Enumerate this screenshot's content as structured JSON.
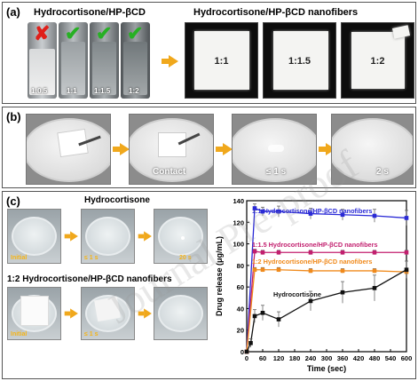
{
  "panel_a": {
    "label": "(a)",
    "left_title": "Hydrocortisone/HP-βCD",
    "right_title": "Hydrocortisone/HP-βCD nanofibers",
    "vials": [
      {
        "label": "1:0.5",
        "status": "cross"
      },
      {
        "label": "1:1",
        "status": "check"
      },
      {
        "label": "1:1.5",
        "status": "check"
      },
      {
        "label": "1:2",
        "status": "check"
      }
    ],
    "fibers": [
      {
        "label": "1:1"
      },
      {
        "label": "1:1.5"
      },
      {
        "label": "1:2"
      }
    ],
    "cross_symbol": "✘",
    "check_symbol": "✔"
  },
  "panel_b": {
    "label": "(b)",
    "frames": [
      {
        "caption": ""
      },
      {
        "caption": "Contact"
      },
      {
        "caption": "≤ 1 s"
      },
      {
        "caption": "2 s"
      }
    ]
  },
  "panel_c": {
    "label": "(c)",
    "row1_title": "Hydrocortisone",
    "row1_times": [
      "Initial",
      "≤ 1 s",
      "20 s"
    ],
    "row2_title": "1:2 Hydrocortisone/HP-βCD nanofibers",
    "row2_times": [
      "Initial",
      "≤ 1 s",
      ""
    ]
  },
  "chart_data": {
    "type": "line",
    "xlabel": "Time (sec)",
    "ylabel": "Drug release (μg/mL)",
    "xlim": [
      0,
      600
    ],
    "ylim": [
      0,
      140
    ],
    "xticks": [
      0,
      60,
      120,
      180,
      240,
      300,
      360,
      420,
      480,
      540,
      600
    ],
    "yticks": [
      0,
      20,
      40,
      60,
      80,
      100,
      120,
      140
    ],
    "series": [
      {
        "name": "1:1 Hydrocortisone/HP-βCD nanofibers",
        "color": "#2a2ad6",
        "x": [
          0,
          30,
          60,
          120,
          240,
          360,
          480,
          600
        ],
        "y": [
          0,
          133,
          130,
          130,
          128,
          127,
          126,
          124
        ],
        "err": [
          0,
          4,
          4,
          5,
          5,
          5,
          6,
          7
        ]
      },
      {
        "name": "1:1.5 Hydrocortisone/HP-βCD nanofibers",
        "color": "#c21f6e",
        "x": [
          0,
          30,
          60,
          120,
          240,
          360,
          480,
          600
        ],
        "y": [
          0,
          93,
          92,
          92,
          92,
          92,
          92,
          92
        ],
        "err": [
          0,
          2,
          2,
          2,
          2,
          2,
          2,
          2
        ]
      },
      {
        "name": "1:2 Hydrocortisone/HP-βCD nanofibers",
        "color": "#f08a1c",
        "x": [
          0,
          30,
          60,
          120,
          240,
          360,
          480,
          600
        ],
        "y": [
          0,
          76,
          76,
          76,
          75,
          75,
          75,
          74
        ],
        "err": [
          0,
          2,
          2,
          2,
          2,
          2,
          2,
          2
        ]
      },
      {
        "name": "Hydrocortisone",
        "color": "#111111",
        "x": [
          0,
          15,
          30,
          60,
          120,
          240,
          360,
          480,
          600
        ],
        "y": [
          0,
          8,
          33,
          36,
          30,
          47,
          55,
          59,
          76
        ],
        "err": [
          0,
          4,
          6,
          7,
          7,
          9,
          10,
          12,
          8
        ]
      }
    ]
  },
  "watermark": "Journal Pre-proof"
}
